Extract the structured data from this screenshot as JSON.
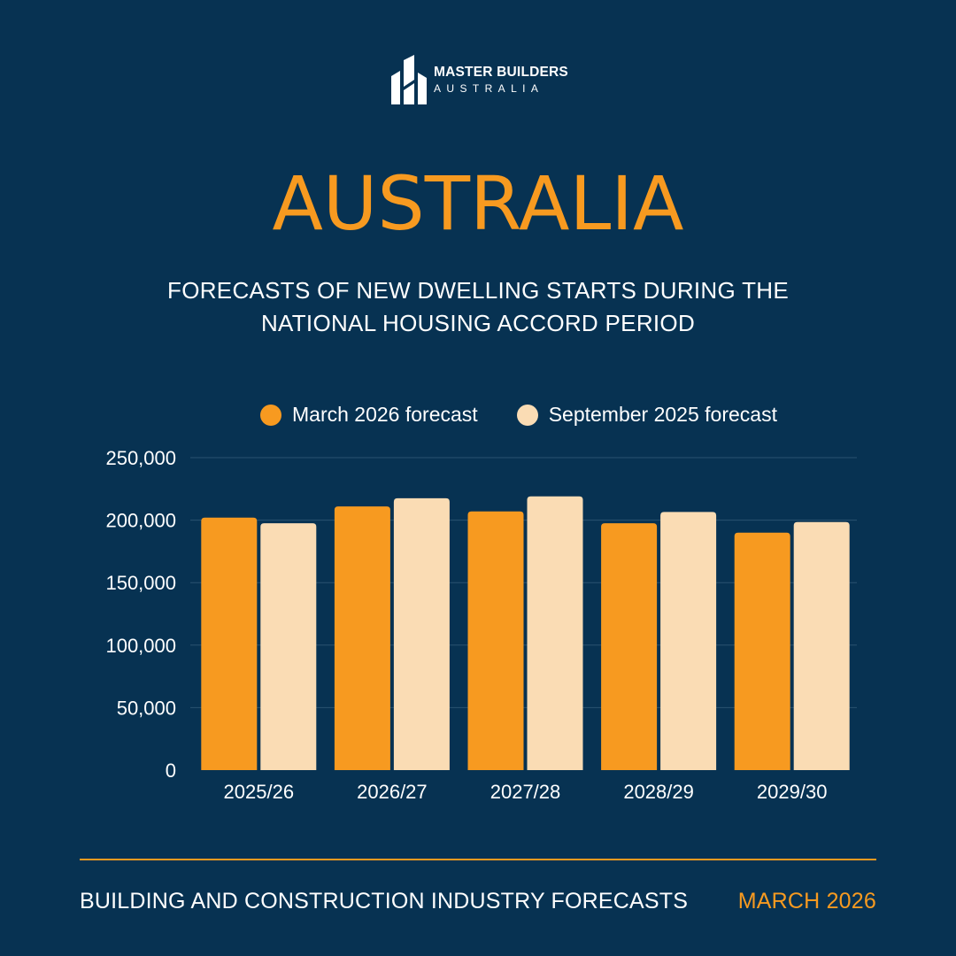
{
  "brand": {
    "line1": "MASTER BUILDERS",
    "line2": "AUSTRALIA",
    "color": "#ffffff"
  },
  "headline": "AUSTRALIA",
  "subtitle": {
    "line1": "FORECASTS OF NEW DWELLING STARTS DURING THE",
    "line2": "NATIONAL HOUSING ACCORD PERIOD"
  },
  "colors": {
    "background": "#073252",
    "accent": "#f79a20",
    "secondary": "#fadcb4",
    "grid": "#2a5270"
  },
  "chart_data": {
    "type": "bar",
    "categories": [
      "2025/26",
      "2026/27",
      "2027/28",
      "2028/29",
      "2029/30"
    ],
    "series": [
      {
        "name": "March 2026 forecast",
        "color": "#f79a20",
        "values": [
          202000,
          211000,
          207000,
          197500,
          190000
        ]
      },
      {
        "name": "September 2025 forecast",
        "color": "#fadcb4",
        "values": [
          197500,
          217500,
          219000,
          206500,
          198500
        ]
      }
    ],
    "ylim": [
      0,
      250000
    ],
    "yticks": [
      0,
      50000,
      100000,
      150000,
      200000,
      250000
    ],
    "ytick_labels": [
      "0",
      "50,000",
      "100,000",
      "150,000",
      "200,000",
      "250,000"
    ],
    "grid": true,
    "legend_position": "top-center",
    "xlabel": "",
    "ylabel": ""
  },
  "footer": {
    "left": "BUILDING AND CONSTRUCTION INDUSTRY FORECASTS",
    "right": "MARCH 2026",
    "right_color": "#f79a20"
  }
}
